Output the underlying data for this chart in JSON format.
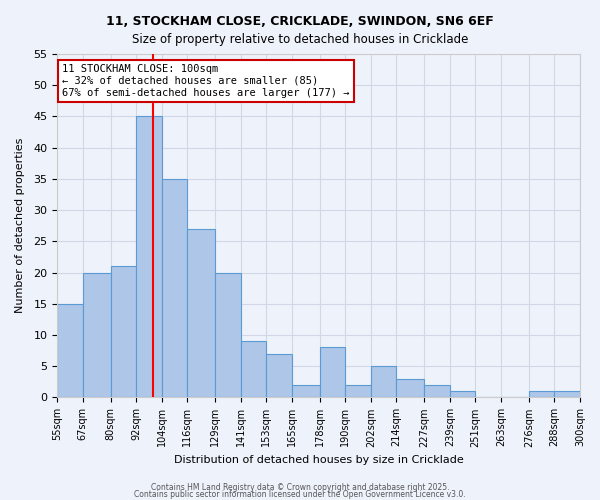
{
  "title_line1": "11, STOCKHAM CLOSE, CRICKLADE, SWINDON, SN6 6EF",
  "title_line2": "Size of property relative to detached houses in Cricklade",
  "xlabel": "Distribution of detached houses by size in Cricklade",
  "ylabel": "Number of detached properties",
  "annotation_line1": "11 STOCKHAM CLOSE: 100sqm",
  "annotation_line2": "← 32% of detached houses are smaller (85)",
  "annotation_line3": "67% of semi-detached houses are larger (177) →",
  "property_size": 100,
  "bin_edges": [
    55,
    67,
    80,
    92,
    104,
    116,
    129,
    141,
    153,
    165,
    178,
    190,
    202,
    214,
    227,
    239,
    251,
    263,
    276,
    288,
    300
  ],
  "bar_heights": [
    15,
    20,
    21,
    45,
    35,
    27,
    20,
    9,
    7,
    2,
    8,
    2,
    5,
    3,
    2,
    1,
    0,
    0,
    1,
    1
  ],
  "bar_color": "#aec6e8",
  "bar_edge_color": "#5b9bd5",
  "red_line_color": "#ff0000",
  "annotation_box_edge_color": "#cc0000",
  "annotation_box_face_color": "#ffffff",
  "grid_color": "#d0d8e8",
  "background_color": "#eef2fa",
  "xlim_left": 55,
  "xlim_right": 300,
  "ylim_bottom": 0,
  "ylim_top": 55,
  "yticks": [
    0,
    5,
    10,
    15,
    20,
    25,
    30,
    35,
    40,
    45,
    50,
    55
  ],
  "footer_line1": "Contains HM Land Registry data © Crown copyright and database right 2025.",
  "footer_line2": "Contains public sector information licensed under the Open Government Licence v3.0."
}
